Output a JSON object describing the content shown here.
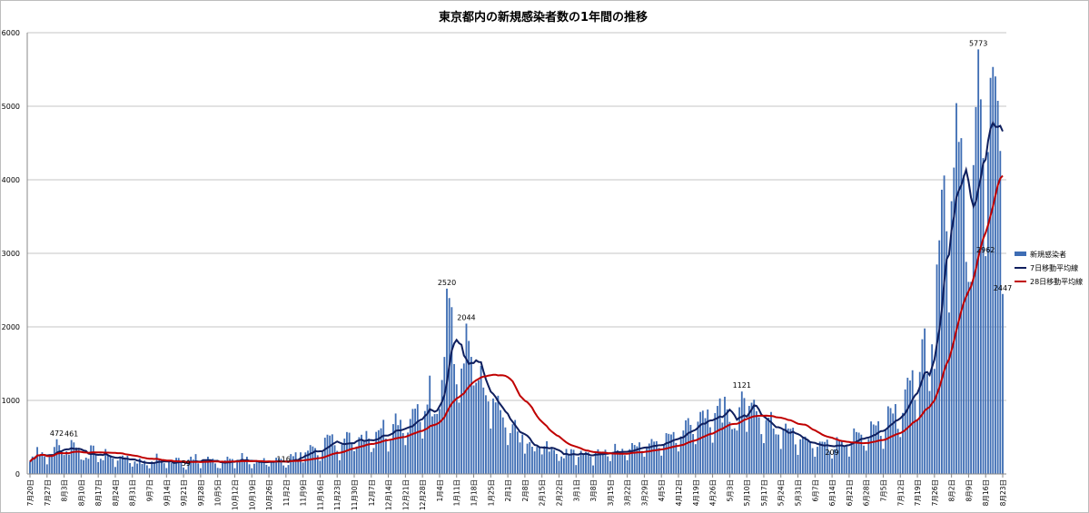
{
  "chart_data": {
    "type": "bar",
    "title": "東京都内の新規感染者数の1年間の推移",
    "xlabel": "",
    "ylabel": "",
    "ylim": [
      0,
      6000
    ],
    "yticks": [
      0,
      1000,
      2000,
      3000,
      4000,
      5000,
      6000
    ],
    "grid": true,
    "legend_position": "right",
    "x_tick_labels": [
      "7月20日",
      "7月27日",
      "8月3日",
      "8月10日",
      "8月17日",
      "8月24日",
      "8月31日",
      "9月7日",
      "9月14日",
      "9月21日",
      "9月28日",
      "10月5日",
      "10月12日",
      "10月19日",
      "10月26日",
      "11月2日",
      "11月9日",
      "11月16日",
      "11月23日",
      "11月30日",
      "12月7日",
      "12月14日",
      "12月21日",
      "12月28日",
      "1月4日",
      "1月11日",
      "1月18日",
      "1月25日",
      "2月1日",
      "2月8日",
      "2月15日",
      "2月22日",
      "3月1日",
      "3月8日",
      "3月15日",
      "3月22日",
      "3月29日",
      "4月5日",
      "4月12日",
      "4月19日",
      "4月26日",
      "5月3日",
      "5月10日",
      "5月17日",
      "5月24日",
      "5月31日",
      "6月7日",
      "6月14日",
      "6月21日",
      "6月28日",
      "7月5日",
      "7月12日",
      "7月19日",
      "7月26日",
      "8月2日",
      "8月9日",
      "8月16日",
      "8月23日"
    ],
    "series": [
      {
        "name": "新規感染者",
        "type": "bar",
        "color": "#3e6db4",
        "values": [
          168,
          237,
          238,
          366,
          260,
          295,
          239,
          131,
          266,
          250,
          367,
          472,
          392,
          292,
          258,
          309,
          263,
          461,
          429,
          360,
          331,
          197,
          188,
          222,
          206,
          389,
          385,
          260,
          161,
          207,
          186,
          339,
          258,
          256,
          212,
          95,
          182,
          236,
          250,
          226,
          247,
          148,
          100,
          170,
          141,
          211,
          136,
          181,
          118,
          77,
          170,
          149,
          276,
          187,
          181,
          146,
          80,
          163,
          149,
          141,
          220,
          218,
          165,
          88,
          59,
          195,
          235,
          195,
          270,
          145,
          78,
          194,
          194,
          235,
          196,
          207,
          143,
          83,
          77,
          177,
          186,
          235,
          206,
          203,
          78,
          166,
          177,
          284,
          184,
          235,
          132,
          78,
          139,
          185,
          185,
          186,
          215,
          124,
          102,
          158,
          171,
          221,
          215,
          207,
          116,
          87,
          122,
          270,
          242,
          294,
          189,
          294,
          157,
          293,
          317,
          393,
          374,
          352,
          255,
          180,
          298,
          493,
          534,
          522,
          539,
          391,
          314,
          186,
          401,
          481,
          570,
          561,
          418,
          311,
          372,
          500,
          533,
          449,
          584,
          480,
          299,
          352,
          572,
          595,
          621,
          736,
          480,
          305,
          460,
          678,
          822,
          664,
          736,
          556,
          392,
          563,
          748,
          884,
          888,
          949,
          708,
          481,
          856,
          944,
          1337,
          783,
          814,
          816,
          884,
          1278,
          1591,
          2520,
          2392,
          2268,
          1494,
          1219,
          970,
          1433,
          1502,
          2044,
          1809,
          1592,
          1204,
          1240,
          1274,
          1471,
          1175,
          1070,
          986,
          618,
          1026,
          973,
          1064,
          868,
          769,
          633,
          393,
          556,
          676,
          734,
          577,
          429,
          536,
          276,
          412,
          434,
          370,
          307,
          369,
          371,
          266,
          378,
          445,
          304,
          353,
          327,
          272,
          178,
          237,
          213,
          340,
          270,
          337,
          329,
          121,
          232,
          316,
          279,
          301,
          293,
          237,
          116,
          290,
          335,
          304,
          304,
          330,
          239,
          175,
          300,
          409,
          323,
          303,
          342,
          256,
          187,
          337,
          420,
          394,
          376,
          430,
          313,
          234,
          364,
          414,
          475,
          440,
          446,
          355,
          249,
          399,
          555,
          545,
          537,
          570,
          421,
          306,
          510,
          591,
          729,
          759,
          667,
          543,
          405,
          711,
          843,
          861,
          759,
          876,
          635,
          425,
          828,
          925,
          1027,
          698,
          1050,
          879,
          708,
          609,
          621,
          591,
          907,
          1121,
          1032,
          573,
          925,
          969,
          1010,
          854,
          772,
          542,
          419,
          732,
          766,
          843,
          618,
          539,
          535,
          340,
          597,
          684,
          618,
          614,
          629,
          402,
          260,
          471,
          487,
          508,
          473,
          436,
          351,
          235,
          369,
          440,
          439,
          435,
          467,
          304,
          209,
          337,
          501,
          452,
          453,
          388,
          376,
          236,
          435,
          619,
          570,
          562,
          534,
          386,
          317,
          476,
          714,
          673,
          660,
          716,
          518,
          342,
          593,
          920,
          896,
          822,
          950,
          614,
          502,
          830,
          1149,
          1308,
          1271,
          1410,
          1008,
          727,
          1387,
          1832,
          1979,
          1359,
          1128,
          1763,
          1429,
          2848,
          3177,
          3865,
          4058,
          3300,
          2195,
          3709,
          4166,
          5042,
          4515,
          4566,
          4066,
          2884,
          2612,
          2612,
          4200,
          4989,
          5773,
          5094,
          4295,
          2962,
          4377,
          5386,
          5534,
          5405,
          5074,
          4392,
          2447
        ]
      },
      {
        "name": "7日移動平均線",
        "type": "line",
        "color": "#0f1f5e",
        "window": 7
      },
      {
        "name": "28日移動平均線",
        "type": "line",
        "color": "#c00000",
        "window": 28
      }
    ],
    "data_labels": [
      472,
      461,
      59,
      2520,
      2044,
      116,
      1121,
      209,
      5773,
      2962,
      2447
    ]
  }
}
